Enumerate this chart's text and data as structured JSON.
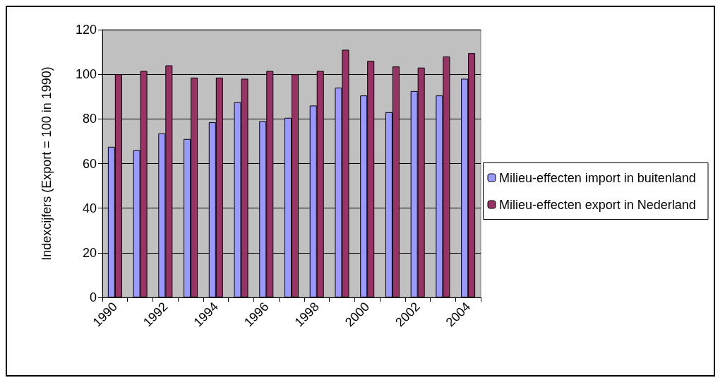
{
  "chart_data": {
    "type": "bar",
    "ylabel": "Indexcijfers (Export = 100 in 1990)",
    "categories": [
      "1990",
      null,
      "1992",
      null,
      "1994",
      null,
      "1996",
      null,
      "1998",
      null,
      "2000",
      null,
      "2002",
      null,
      "2004"
    ],
    "series": [
      {
        "name": "Milieu-effecten import in buitenland",
        "color": "#9999ff",
        "values": [
          67.5,
          66,
          73.5,
          71,
          78.5,
          87.5,
          79,
          80.5,
          86,
          94,
          90.5,
          83,
          92.5,
          90.5,
          98
        ]
      },
      {
        "name": "Milieu-effecten export in Nederland",
        "color": "#993366",
        "values": [
          100,
          101.5,
          104,
          98.5,
          98.5,
          98,
          101.5,
          100,
          101.5,
          111,
          106,
          103.5,
          103,
          108,
          109.5
        ]
      }
    ],
    "ylim": [
      0,
      120
    ],
    "yticks": [
      0,
      20,
      40,
      60,
      80,
      100,
      120
    ],
    "grid": "y",
    "legend": "right"
  }
}
